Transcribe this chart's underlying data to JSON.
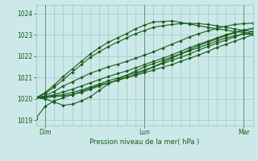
{
  "title": "",
  "xlabel": "Pression niveau de la mer( hPa )",
  "bg_color": "#cce8e8",
  "grid_color": "#99cccc",
  "line_color": "#1a5c1a",
  "tick_color": "#1a5c1a",
  "label_color": "#1a5c1a",
  "ylim": [
    1018.75,
    1024.4
  ],
  "yticks": [
    1019,
    1020,
    1021,
    1022,
    1023,
    1024
  ],
  "xlim": [
    0,
    96
  ],
  "xtick_positions": [
    4,
    48,
    92
  ],
  "xtick_labels": [
    "Dim",
    "Lun",
    "Mar"
  ],
  "vline_positions": [
    4,
    48,
    92
  ],
  "n_minor_x": 24,
  "series": [
    [
      1019.1,
      1019.65,
      1019.9,
      1020.05,
      1020.2,
      1020.35,
      1020.5,
      1020.65,
      1020.75,
      1020.85,
      1021.0,
      1021.15,
      1021.3,
      1021.5,
      1021.7,
      1021.9,
      1022.1,
      1022.3,
      1022.5,
      1022.65,
      1022.8,
      1022.95,
      1023.1,
      1023.2,
      1023.3
    ],
    [
      1020.05,
      1020.05,
      1020.1,
      1020.15,
      1020.2,
      1020.3,
      1020.45,
      1020.6,
      1020.75,
      1020.88,
      1021.0,
      1021.1,
      1021.22,
      1021.35,
      1021.48,
      1021.6,
      1021.75,
      1021.9,
      1022.05,
      1022.22,
      1022.4,
      1022.55,
      1022.7,
      1022.85,
      1023.0
    ],
    [
      1020.05,
      1020.1,
      1020.15,
      1020.2,
      1020.3,
      1020.42,
      1020.55,
      1020.7,
      1020.85,
      1020.97,
      1021.1,
      1021.22,
      1021.35,
      1021.5,
      1021.65,
      1021.8,
      1021.95,
      1022.1,
      1022.28,
      1022.45,
      1022.6,
      1022.75,
      1022.9,
      1023.05,
      1023.15
    ],
    [
      1020.05,
      1020.1,
      1020.2,
      1020.32,
      1020.45,
      1020.6,
      1020.75,
      1020.9,
      1021.05,
      1021.18,
      1021.3,
      1021.45,
      1021.6,
      1021.75,
      1021.9,
      1022.05,
      1022.22,
      1022.4,
      1022.55,
      1022.7,
      1022.85,
      1023.0,
      1023.12,
      1023.22,
      1023.3
    ],
    [
      1020.05,
      1020.15,
      1020.35,
      1020.6,
      1020.8,
      1021.0,
      1021.2,
      1021.35,
      1021.5,
      1021.62,
      1021.75,
      1021.9,
      1022.05,
      1022.2,
      1022.38,
      1022.55,
      1022.72,
      1022.9,
      1023.05,
      1023.18,
      1023.3,
      1023.4,
      1023.48,
      1023.52,
      1023.55
    ],
    [
      1020.05,
      1020.0,
      1019.85,
      1019.7,
      1019.75,
      1019.9,
      1020.1,
      1020.4,
      1020.7,
      1020.9,
      1021.1,
      1021.3,
      1021.5,
      1021.65,
      1021.8,
      1021.95,
      1022.1,
      1022.25,
      1022.4,
      1022.55,
      1022.7,
      1022.85,
      1022.95,
      1023.05,
      1023.0
    ],
    [
      1020.05,
      1020.25,
      1020.55,
      1020.9,
      1021.25,
      1021.6,
      1021.95,
      1022.2,
      1022.45,
      1022.65,
      1022.85,
      1023.05,
      1023.2,
      1023.35,
      1023.42,
      1023.48,
      1023.52,
      1023.53,
      1023.52,
      1023.48,
      1023.42,
      1023.35,
      1023.27,
      1023.2,
      1023.15
    ],
    [
      1020.05,
      1020.3,
      1020.65,
      1021.05,
      1021.4,
      1021.75,
      1022.1,
      1022.4,
      1022.65,
      1022.85,
      1023.05,
      1023.28,
      1023.45,
      1023.6,
      1023.62,
      1023.65,
      1023.58,
      1023.5,
      1023.42,
      1023.35,
      1023.28,
      1023.22,
      1023.15,
      1023.1,
      1023.05
    ]
  ]
}
